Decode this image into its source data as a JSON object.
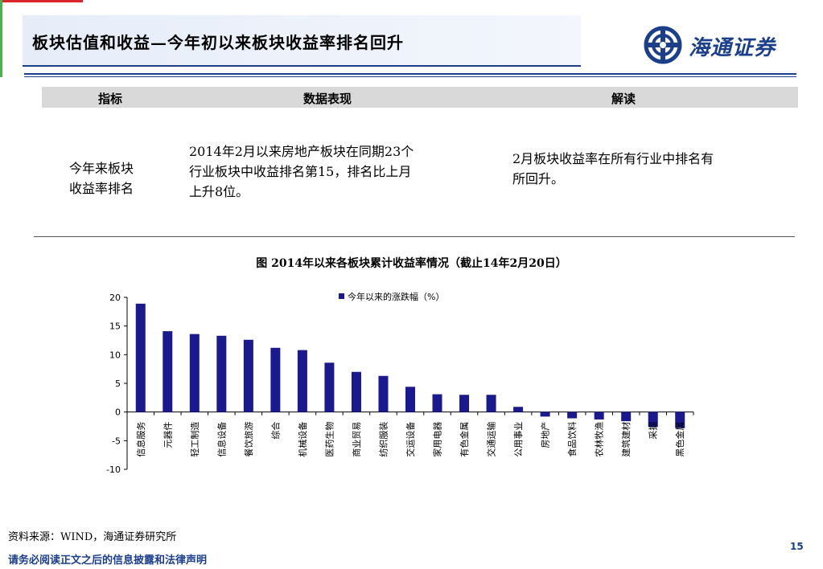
{
  "header": {
    "title": "板块估值和收益—今年初以来板块收益率排名回升",
    "logo_text": "海通证券"
  },
  "table": {
    "headers": [
      "指标",
      "数据表现",
      "解读"
    ],
    "row": {
      "indicator_lines": [
        "今年来板块",
        "收益率排名"
      ],
      "data_lines": [
        "2014年2月以来房地产板块在同期23个",
        "行业板块中收益排名第15，排名比上月",
        "上升8位。"
      ],
      "interpretation_lines": [
        "2月板块收益率在所有行业中排名有",
        "所回升。"
      ]
    }
  },
  "chart_title": "图 2014年以来各板块累计收益率情况（截止14年2月20日）",
  "chart_data": {
    "type": "bar",
    "title": "",
    "xlabel": "",
    "ylabel": "",
    "ylim": [
      -10,
      20
    ],
    "yticks": [
      -10,
      -5,
      0,
      5,
      10,
      15,
      20
    ],
    "legend_position": "top-center",
    "grid": false,
    "color": "#1a1a8c",
    "categories": [
      "信息服务",
      "元器件",
      "轻工制造",
      "信息设备",
      "餐饮旅游",
      "综合",
      "机械设备",
      "医药生物",
      "商业贸易",
      "纺织服装",
      "交运设备",
      "家用电器",
      "有色金属",
      "交通运输",
      "公用事业",
      "房地产",
      "食品饮料",
      "农林牧渔",
      "建筑建材",
      "采掘",
      "黑色金属"
    ],
    "series": [
      {
        "name": "今年以来的涨跌幅（%）",
        "values": [
          18.9,
          14.1,
          13.6,
          13.3,
          12.6,
          11.2,
          10.8,
          8.6,
          7.0,
          6.3,
          4.4,
          3.1,
          3.0,
          3.0,
          0.9,
          -0.8,
          -1.1,
          -1.3,
          -1.6,
          -2.6,
          -2.8
        ]
      }
    ]
  },
  "footer": {
    "source": "资料来源：WIND，海通证券研究所",
    "disclaimer": "请务必阅读正文之后的信息披露和法律声明",
    "page_number": "15"
  }
}
